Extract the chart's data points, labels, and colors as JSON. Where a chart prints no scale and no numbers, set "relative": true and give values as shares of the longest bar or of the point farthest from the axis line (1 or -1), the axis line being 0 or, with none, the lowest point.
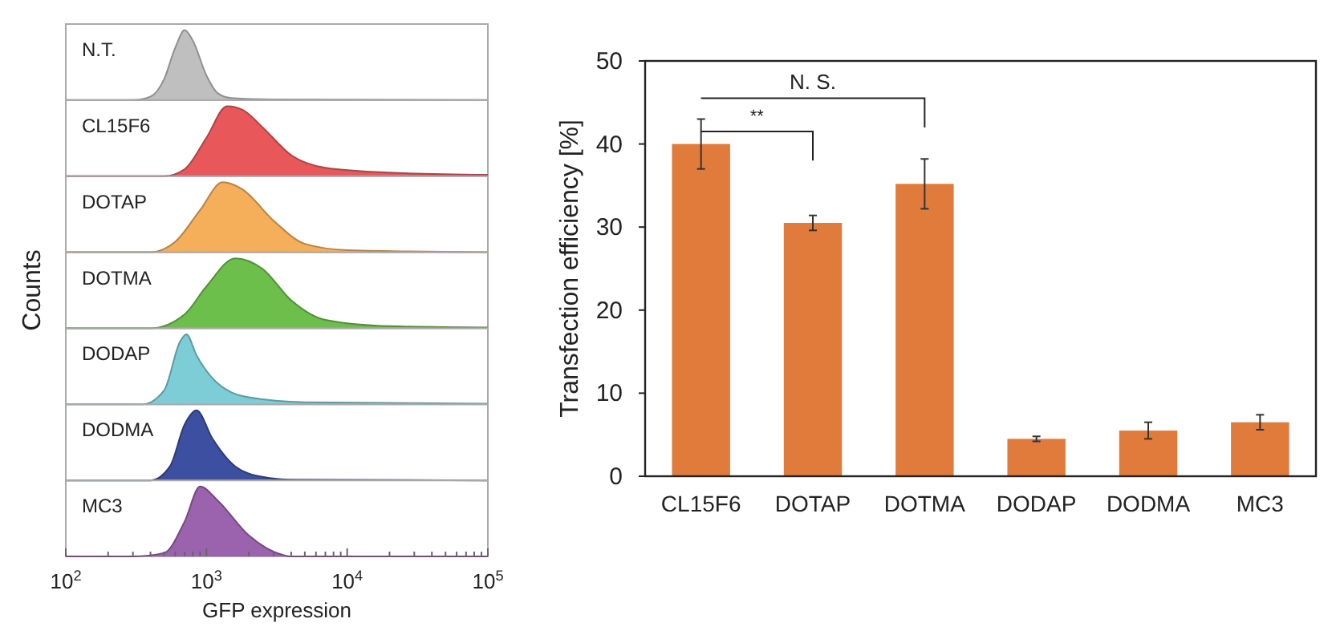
{
  "chart_data": [
    {
      "type": "area",
      "relative": true,
      "log": "x",
      "xlim": [
        100,
        100000
      ],
      "tick_labels": false,
      "series": [
        {
          "name": "N.T.",
          "color": "#bfbfbf",
          "x": [
            100,
            300,
            400,
            500,
            600,
            700,
            800,
            1000,
            1200,
            1500,
            3000,
            100000
          ],
          "values": [
            0,
            0,
            0.05,
            0.3,
            0.75,
            1,
            0.85,
            0.35,
            0.1,
            0.03,
            0.01,
            0
          ]
        }
      ]
    },
    {
      "type": "area",
      "relative": true,
      "log": "x",
      "xlim": [
        100,
        100000
      ],
      "tick_labels": false,
      "series": [
        {
          "name": "CL15F6",
          "color": "#e8585a",
          "x": [
            100,
            500,
            700,
            1000,
            1400,
            1800,
            2500,
            4000,
            7000,
            20000,
            100000
          ],
          "values": [
            0,
            0,
            0.1,
            0.55,
            1,
            0.95,
            0.7,
            0.3,
            0.12,
            0.05,
            0.02
          ]
        }
      ]
    },
    {
      "type": "area",
      "relative": true,
      "log": "x",
      "xlim": [
        100,
        100000
      ],
      "tick_labels": false,
      "series": [
        {
          "name": "DOTAP",
          "color": "#f5ae5a",
          "x": [
            100,
            400,
            600,
            900,
            1300,
            1800,
            3000,
            5000,
            10000,
            100000
          ],
          "values": [
            0,
            0,
            0.15,
            0.6,
            1,
            0.9,
            0.45,
            0.12,
            0.03,
            0
          ]
        }
      ]
    },
    {
      "type": "area",
      "relative": true,
      "log": "x",
      "xlim": [
        100,
        100000
      ],
      "tick_labels": false,
      "ylabel": "Counts",
      "series": [
        {
          "name": "DOTMA",
          "color": "#6cbf4a",
          "x": [
            100,
            400,
            700,
            1000,
            1600,
            2500,
            4000,
            7000,
            20000,
            100000
          ],
          "values": [
            0,
            0,
            0.2,
            0.6,
            1,
            0.85,
            0.4,
            0.12,
            0.03,
            0.01
          ]
        }
      ]
    },
    {
      "type": "area",
      "relative": true,
      "log": "x",
      "xlim": [
        100,
        100000
      ],
      "tick_labels": false,
      "series": [
        {
          "name": "DODAP",
          "color": "#7ccdd6",
          "x": [
            100,
            350,
            500,
            650,
            720,
            850,
            1200,
            2000,
            5000,
            100000
          ],
          "values": [
            0,
            0,
            0.2,
            0.9,
            1,
            0.7,
            0.3,
            0.1,
            0.03,
            0.01
          ]
        }
      ]
    },
    {
      "type": "area",
      "relative": true,
      "log": "x",
      "xlim": [
        100,
        100000
      ],
      "tick_labels": false,
      "series": [
        {
          "name": "DODMA",
          "color": "#3c4fa0",
          "x": [
            100,
            400,
            550,
            700,
            850,
            1100,
            1600,
            2500,
            4000,
            100000
          ],
          "values": [
            0,
            0,
            0.2,
            0.8,
            1,
            0.6,
            0.2,
            0.05,
            0.01,
            0
          ]
        }
      ]
    },
    {
      "type": "area",
      "relative": true,
      "log": "x",
      "xlim": [
        100,
        100000
      ],
      "tick_labels": "x",
      "xlabel": "GFP expression",
      "xticks": [
        {
          "value": 100,
          "label": "10$^{2}$"
        },
        {
          "value": 200,
          "label": null
        },
        {
          "value": 300,
          "label": null
        },
        {
          "value": 400,
          "label": null
        },
        {
          "value": 500,
          "label": null
        },
        {
          "value": 600,
          "label": null
        },
        {
          "value": 700,
          "label": null
        },
        {
          "value": 800,
          "label": null
        },
        {
          "value": 900,
          "label": null
        },
        {
          "value": 1000,
          "label": "10$^{3}$"
        },
        {
          "value": 2000,
          "label": null
        },
        {
          "value": 3000,
          "label": null
        },
        {
          "value": 4000,
          "label": null
        },
        {
          "value": 5000,
          "label": null
        },
        {
          "value": 6000,
          "label": null
        },
        {
          "value": 7000,
          "label": null
        },
        {
          "value": 8000,
          "label": null
        },
        {
          "value": 9000,
          "label": null
        },
        {
          "value": 10000,
          "label": "10$^{4}$"
        },
        {
          "value": 20000,
          "label": null
        },
        {
          "value": 30000,
          "label": null
        },
        {
          "value": 40000,
          "label": null
        },
        {
          "value": 50000,
          "label": null
        },
        {
          "value": 60000,
          "label": null
        },
        {
          "value": 70000,
          "label": null
        },
        {
          "value": 80000,
          "label": null
        },
        {
          "value": 90000,
          "label": null
        },
        {
          "value": 100000,
          "label": "10$^{5}$"
        }
      ],
      "series": [
        {
          "name": "MC3",
          "color": "#9b63ad",
          "x": [
            100,
            300,
            500,
            700,
            900,
            1200,
            2000,
            3500,
            4000,
            100000
          ],
          "values": [
            0,
            0,
            0.05,
            0.5,
            1,
            0.8,
            0.3,
            0.02,
            0,
            0
          ]
        }
      ]
    },
    {
      "type": "bar",
      "ylabel": "Transfection efficiency [%]",
      "categories": [
        "CL15F6",
        "DOTAP",
        "DOTMA",
        "DODAP",
        "DODMA",
        "MC3"
      ],
      "values": [
        40,
        30.5,
        35.2,
        4.5,
        5.5,
        6.5
      ],
      "errors": [
        3,
        0.9,
        3,
        0.3,
        1,
        0.9
      ],
      "color": "#e07b3c",
      "ylim": [
        0,
        50
      ],
      "yticks": [
        0,
        10,
        20,
        30,
        40,
        50
      ],
      "grid": false,
      "annotations": [
        "**",
        "N. S."
      ]
    }
  ]
}
